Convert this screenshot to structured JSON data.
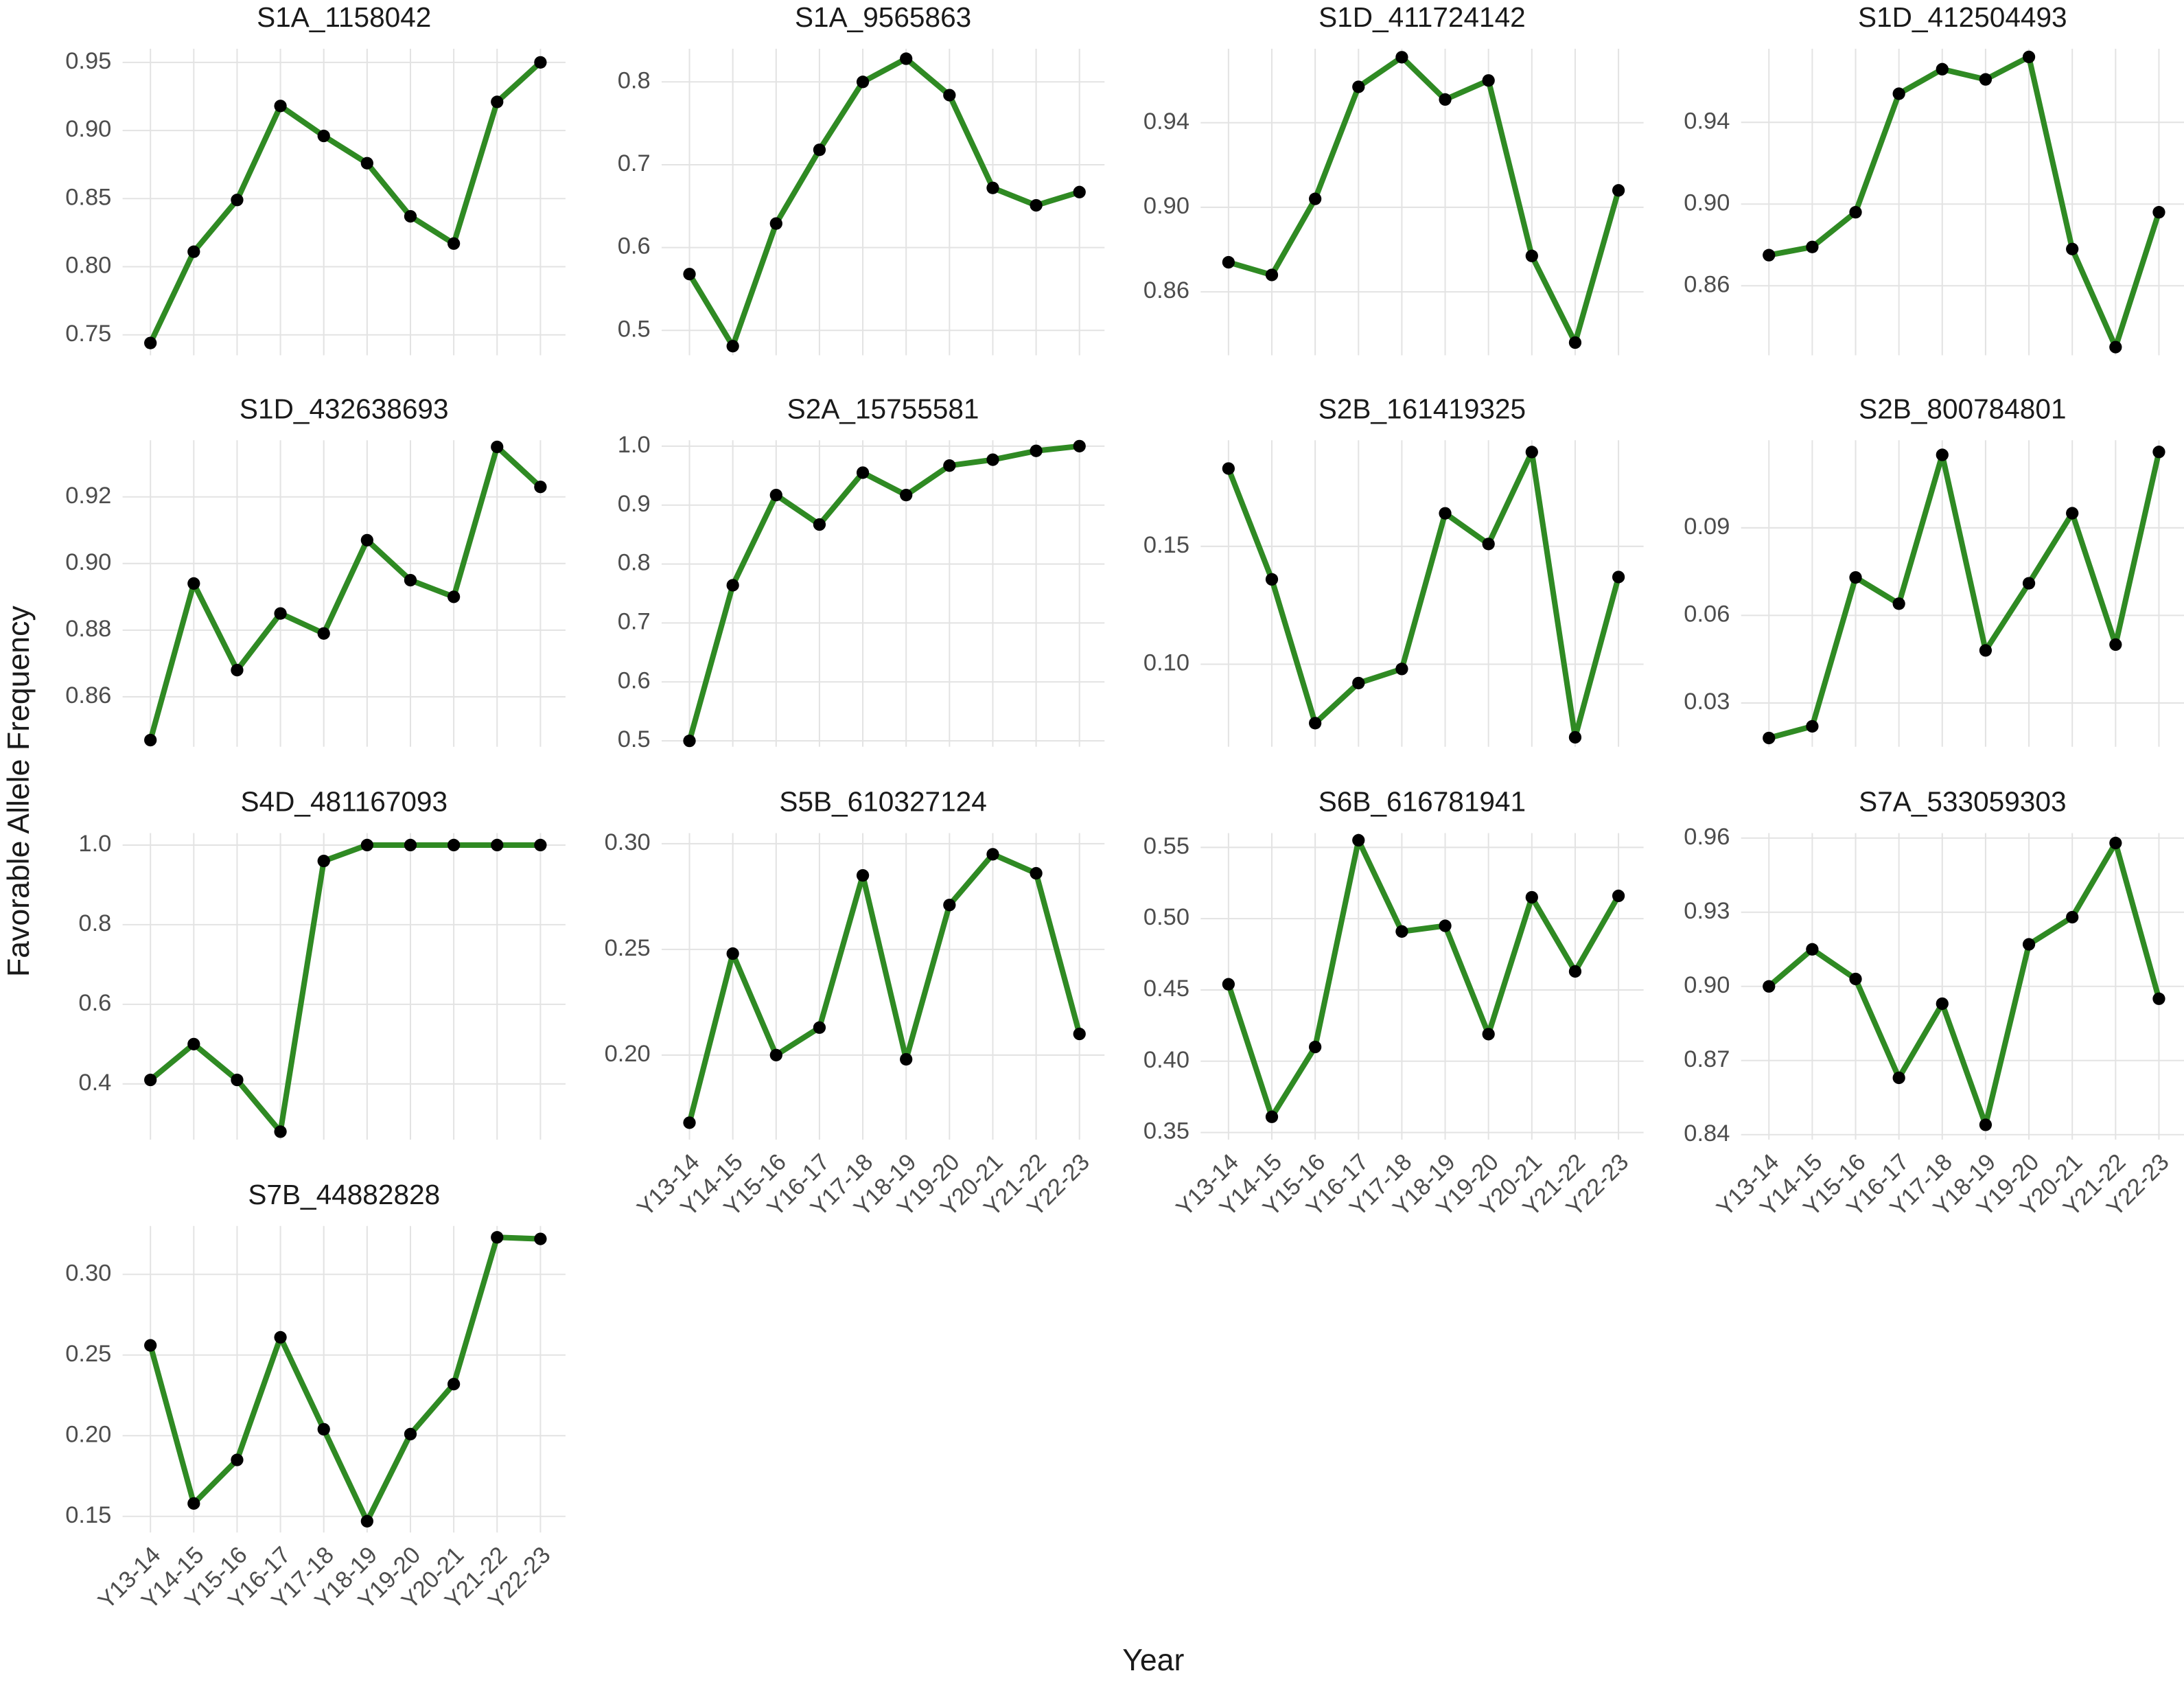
{
  "x_label": "Year",
  "y_label": "Favorable Allele Frequency",
  "categories": [
    "Y13-14",
    "Y14-15",
    "Y15-16",
    "Y16-17",
    "Y17-18",
    "Y18-19",
    "Y19-20",
    "Y20-21",
    "Y21-22",
    "Y22-23"
  ],
  "color": "#2f8a23",
  "marker_color": "#000000",
  "chart_data": [
    {
      "type": "line",
      "title": "S1A_1158042",
      "values": [
        0.744,
        0.811,
        0.849,
        0.918,
        0.896,
        0.876,
        0.837,
        0.817,
        0.921,
        0.95
      ],
      "ylim": [
        0.735,
        0.96
      ],
      "yticks": [
        {
          "value": 0.75,
          "label": "0.75"
        },
        {
          "value": 0.8,
          "label": "0.80"
        },
        0.85,
        {
          "value": 0.9,
          "label": "0.90"
        },
        0.95
      ]
    },
    {
      "type": "line",
      "title": "S1A_9565863",
      "values": [
        0.568,
        0.481,
        0.629,
        0.718,
        0.8,
        0.828,
        0.784,
        0.672,
        0.651,
        0.667
      ],
      "ylim": [
        0.47,
        0.84
      ],
      "yticks": [
        0.5,
        0.6,
        0.7,
        0.8
      ]
    },
    {
      "type": "line",
      "title": "S1D_411724142",
      "values": [
        0.874,
        0.868,
        0.904,
        0.957,
        0.971,
        0.951,
        0.96,
        0.877,
        0.836,
        0.908
      ],
      "ylim": [
        0.83,
        0.975
      ],
      "yticks": [
        0.86,
        {
          "value": 0.9,
          "label": "0.90"
        },
        0.94
      ]
    },
    {
      "type": "line",
      "title": "S1D_412504493",
      "values": [
        0.875,
        0.879,
        0.896,
        0.954,
        0.966,
        0.961,
        0.972,
        0.878,
        0.83,
        0.896
      ],
      "ylim": [
        0.826,
        0.976
      ],
      "yticks": [
        0.86,
        {
          "value": 0.9,
          "label": "0.90"
        },
        0.94
      ]
    },
    {
      "type": "line",
      "title": "S1D_432638693",
      "values": [
        0.847,
        0.894,
        0.868,
        0.885,
        0.879,
        0.907,
        0.895,
        0.89,
        0.935,
        0.923
      ],
      "ylim": [
        0.845,
        0.937
      ],
      "yticks": [
        0.86,
        0.88,
        {
          "value": 0.9,
          "label": "0.90"
        },
        0.92
      ]
    },
    {
      "type": "line",
      "title": "S2A_15755581",
      "values": [
        0.5,
        0.764,
        0.917,
        0.867,
        0.955,
        0.917,
        0.967,
        0.977,
        0.992,
        1.0
      ],
      "ylim": [
        0.49,
        1.01
      ],
      "yticks": [
        0.5,
        0.6,
        0.7,
        0.8,
        0.9,
        {
          "value": 1.0,
          "label": "1.0"
        }
      ]
    },
    {
      "type": "line",
      "title": "S2B_161419325",
      "values": [
        0.183,
        0.136,
        0.075,
        0.092,
        0.098,
        0.164,
        0.151,
        0.19,
        0.069,
        0.137
      ],
      "ylim": [
        0.065,
        0.195
      ],
      "yticks": [
        {
          "value": 0.1,
          "label": "0.10"
        },
        0.15
      ]
    },
    {
      "type": "line",
      "title": "S2B_800784801",
      "values": [
        0.018,
        0.022,
        0.073,
        0.064,
        0.115,
        0.048,
        0.071,
        0.095,
        0.05,
        0.116
      ],
      "ylim": [
        0.015,
        0.12
      ],
      "yticks": [
        0.03,
        0.06,
        0.09
      ]
    },
    {
      "type": "line",
      "title": "S4D_481167093",
      "values": [
        0.41,
        0.5,
        0.41,
        0.28,
        0.96,
        1.0,
        1.0,
        1.0,
        1.0,
        1.0
      ],
      "ylim": [
        0.26,
        1.03
      ],
      "yticks": [
        0.4,
        0.6,
        0.8,
        {
          "value": 1.0,
          "label": "1.0"
        }
      ]
    },
    {
      "type": "line",
      "title": "S5B_610327124",
      "values": [
        0.168,
        0.248,
        0.2,
        0.213,
        0.285,
        0.198,
        0.271,
        0.295,
        0.286,
        0.21
      ],
      "ylim": [
        0.16,
        0.305
      ],
      "yticks": [
        {
          "value": 0.2,
          "label": "0.20"
        },
        0.25,
        {
          "value": 0.3,
          "label": "0.30"
        }
      ]
    },
    {
      "type": "line",
      "title": "S6B_616781941",
      "values": [
        0.454,
        0.361,
        0.41,
        0.555,
        0.491,
        0.495,
        0.419,
        0.515,
        0.463,
        0.516
      ],
      "ylim": [
        0.345,
        0.56
      ],
      "yticks": [
        0.35,
        {
          "value": 0.4,
          "label": "0.40"
        },
        0.45,
        {
          "value": 0.5,
          "label": "0.50"
        },
        0.55
      ]
    },
    {
      "type": "line",
      "title": "S7A_533059303",
      "values": [
        0.9,
        0.915,
        0.903,
        0.863,
        0.893,
        0.844,
        0.917,
        0.928,
        0.958,
        0.895
      ],
      "ylim": [
        0.838,
        0.962
      ],
      "yticks": [
        0.84,
        0.87,
        {
          "value": 0.9,
          "label": "0.90"
        },
        0.93,
        0.96
      ]
    },
    {
      "type": "line",
      "title": "S7B_44882828",
      "values": [
        0.256,
        0.158,
        0.185,
        0.261,
        0.204,
        0.147,
        0.201,
        0.232,
        0.323,
        0.322
      ],
      "ylim": [
        0.14,
        0.33
      ],
      "yticks": [
        0.15,
        {
          "value": 0.2,
          "label": "0.20"
        },
        0.25,
        {
          "value": 0.3,
          "label": "0.30"
        }
      ]
    }
  ]
}
